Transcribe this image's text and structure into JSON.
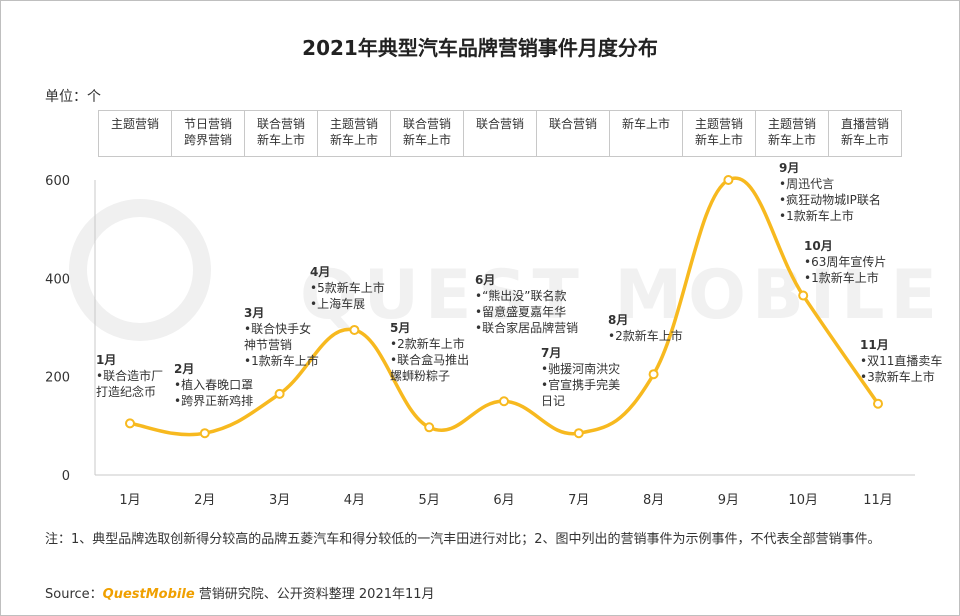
{
  "unit_label": "单位：个",
  "event_header": [
    [
      "主题营销"
    ],
    [
      "节日营销",
      "跨界营销"
    ],
    [
      "联合营销",
      "新车上市"
    ],
    [
      "主题营销",
      "新车上市"
    ],
    [
      "联合营销",
      "新车上市"
    ],
    [
      "联合营销"
    ],
    [
      "联合营销"
    ],
    [
      "新车上市"
    ],
    [
      "主题营销",
      "新车上市"
    ],
    [
      "主题营销",
      "新车上市"
    ],
    [
      "直播营销",
      "新车上市"
    ]
  ],
  "annotations": [
    {
      "month": "1月",
      "lines": [
        "•联合造市厂",
        "打造纪念币"
      ]
    },
    {
      "month": "2月",
      "lines": [
        "•植入春晚口罩",
        "•跨界正新鸡排"
      ]
    },
    {
      "month": "3月",
      "lines": [
        "•联合快手女",
        "神节营销",
        "•1款新车上市"
      ]
    },
    {
      "month": "4月",
      "lines": [
        "•5款新车上市",
        "•上海车展"
      ]
    },
    {
      "month": "5月",
      "lines": [
        "•2款新车上市",
        "•联合盒马推出",
        "螺蛳粉粽子"
      ]
    },
    {
      "month": "6月",
      "lines": [
        "•“熊出没”联名款",
        "•留意盛夏嘉年华",
        "•联合家居品牌营销"
      ]
    },
    {
      "month": "7月",
      "lines": [
        "•驰援河南洪灾",
        "•官宣携手完美",
        "日记"
      ]
    },
    {
      "month": "8月",
      "lines": [
        "•2款新车上市"
      ]
    },
    {
      "month": "9月",
      "lines": [
        "•周迅代言",
        "•疯狂动物城IP联名",
        "•1款新车上市"
      ]
    },
    {
      "month": "10月",
      "lines": [
        "•63周年宣传片",
        "•1款新车上市"
      ]
    },
    {
      "month": "11月",
      "lines": [
        "•双11直播卖车",
        "•3款新车上市"
      ]
    }
  ],
  "chart_data": {
    "type": "line",
    "title": "2021年典型汽车品牌营销事件月度分布",
    "categories": [
      "1月",
      "2月",
      "3月",
      "4月",
      "5月",
      "6月",
      "7月",
      "8月",
      "9月",
      "10月",
      "11月"
    ],
    "values": [
      105,
      85,
      165,
      295,
      97,
      150,
      85,
      205,
      600,
      365,
      145
    ],
    "ylabel": "单位：个",
    "ylim": [
      0,
      600
    ],
    "yticks": [
      "0",
      "200",
      "400",
      "600"
    ],
    "line_color": "#f7b91f",
    "grid": false
  },
  "watermark": "QUEST MOBILE",
  "note": "注：1、典型品牌选取创新得分较高的品牌五菱汽车和得分较低的一汽丰田进行对比；2、图中列出的营销事件为示例事件，不代表全部营销事件。",
  "source": {
    "prefix": "Source：",
    "brand": "QuestMobile",
    "suffix": " 营销研究院、公开资料整理 2021年11月"
  }
}
